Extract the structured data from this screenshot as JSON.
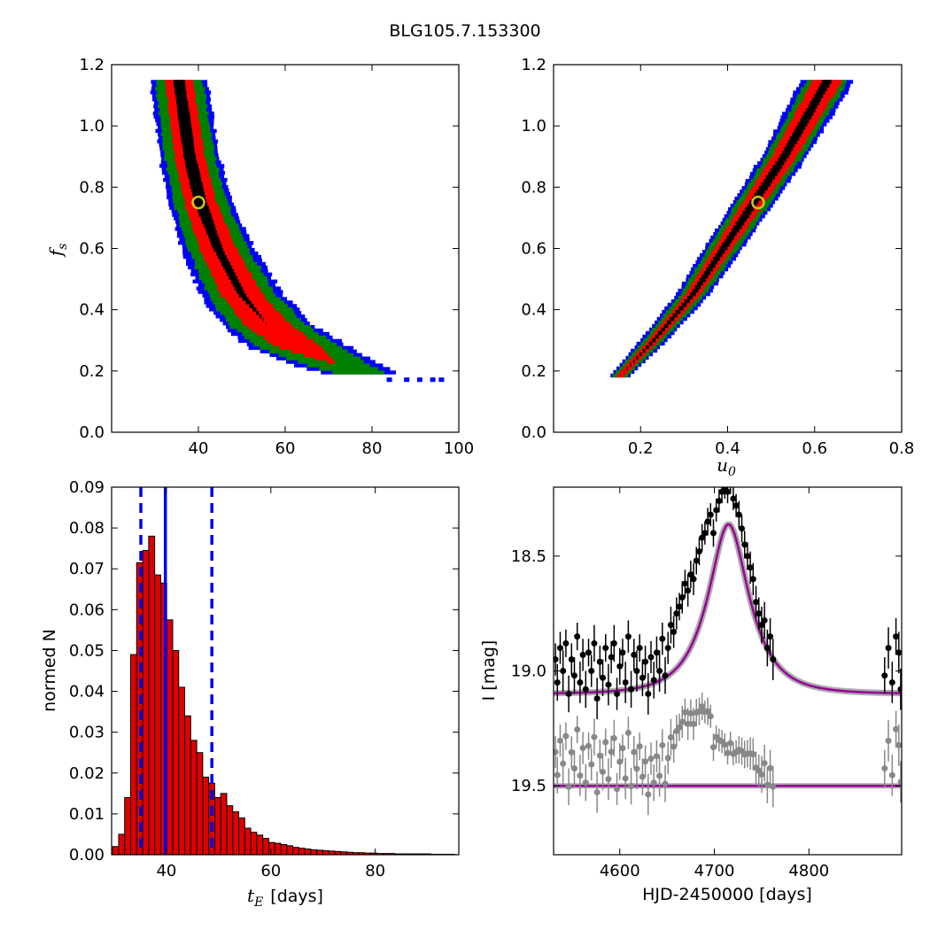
{
  "figure": {
    "title": "BLG105.7.153300"
  },
  "chart_data": [
    {
      "id": "panel-tE-fs",
      "type": "heatmap",
      "xlim": [
        20,
        100
      ],
      "ylim": [
        0.0,
        1.2
      ],
      "xticks": [
        40,
        60,
        80,
        100
      ],
      "yticks": [
        0.0,
        0.2,
        0.4,
        0.6,
        0.8,
        1.0,
        1.2
      ],
      "tick_labels_x": [
        "40",
        "60",
        "80",
        "100"
      ],
      "tick_labels_y": [
        "0.0",
        "0.2",
        "0.4",
        "0.6",
        "0.8",
        "1.0",
        "1.2"
      ],
      "xlabel": "",
      "ylabel": "f_s",
      "ylabel_main": "f",
      "ylabel_sub": "s",
      "confidence_colors": [
        "#0000ff",
        "#008000",
        "#ff0000",
        "#000000"
      ],
      "band": [
        {
          "y": 1.15,
          "center": 35.5,
          "w": [
            1.2,
            3.0,
            5.2,
            6.2
          ]
        },
        {
          "y": 1.0,
          "center": 37.0,
          "w": [
            1.3,
            3.2,
            5.4,
            6.4
          ]
        },
        {
          "y": 0.9,
          "center": 38.0,
          "w": [
            1.3,
            3.3,
            5.5,
            6.6
          ]
        },
        {
          "y": 0.75,
          "center": 40.5,
          "w": [
            1.4,
            3.5,
            5.8,
            7.0
          ]
        },
        {
          "y": 0.6,
          "center": 44.5,
          "w": [
            1.0,
            4.0,
            6.5,
            8.0
          ]
        },
        {
          "y": 0.45,
          "center": 50.0,
          "w": [
            0.8,
            4.5,
            7.5,
            9.0
          ]
        },
        {
          "y": 0.35,
          "center": 56.0,
          "w": [
            0.0,
            5.0,
            8.5,
            10.0
          ]
        },
        {
          "y": 0.28,
          "center": 63.0,
          "w": [
            0.0,
            5.0,
            9.0,
            11.0
          ]
        },
        {
          "y": 0.22,
          "center": 72.0,
          "w": [
            0.0,
            0.0,
            7.0,
            10.0
          ]
        },
        {
          "y": 0.19,
          "center": 78.0,
          "w": [
            0.0,
            0.0,
            5.0,
            8.0
          ]
        }
      ],
      "scatter_outliers": [
        {
          "x": 84,
          "y": 0.17
        },
        {
          "x": 88,
          "y": 0.17
        },
        {
          "x": 91,
          "y": 0.17
        },
        {
          "x": 94,
          "y": 0.17
        },
        {
          "x": 96,
          "y": 0.17
        }
      ],
      "best_fit": {
        "x": 40.0,
        "y": 0.75,
        "color": "#c8c81e"
      }
    },
    {
      "id": "panel-u0-fs",
      "type": "heatmap",
      "xlim": [
        0.0,
        0.8
      ],
      "ylim": [
        0.0,
        1.2
      ],
      "xticks": [
        0.2,
        0.4,
        0.6,
        0.8
      ],
      "yticks": [
        0.0,
        0.2,
        0.4,
        0.6,
        0.8,
        1.0,
        1.2
      ],
      "tick_labels_x": [
        "0.2",
        "0.4",
        "0.6",
        "0.8"
      ],
      "tick_labels_y": [
        "0.0",
        "0.2",
        "0.4",
        "0.6",
        "0.8",
        "1.0",
        "1.2"
      ],
      "xlabel": "u_0",
      "xlabel_main": "u",
      "xlabel_sub": "0",
      "ylabel": "",
      "confidence_colors": [
        "#0000ff",
        "#008000",
        "#ff0000",
        "#000000"
      ],
      "band": [
        {
          "y": 0.18,
          "center": 0.15,
          "w": [
            0.0,
            0.008,
            0.016,
            0.022
          ]
        },
        {
          "y": 0.3,
          "center": 0.23,
          "w": [
            0.004,
            0.012,
            0.022,
            0.03
          ]
        },
        {
          "y": 0.45,
          "center": 0.32,
          "w": [
            0.006,
            0.016,
            0.028,
            0.036
          ]
        },
        {
          "y": 0.6,
          "center": 0.39,
          "w": [
            0.008,
            0.02,
            0.033,
            0.042
          ]
        },
        {
          "y": 0.75,
          "center": 0.46,
          "w": [
            0.01,
            0.024,
            0.037,
            0.046
          ]
        },
        {
          "y": 0.9,
          "center": 0.53,
          "w": [
            0.01,
            0.027,
            0.04,
            0.05
          ]
        },
        {
          "y": 1.05,
          "center": 0.59,
          "w": [
            0.01,
            0.03,
            0.044,
            0.055
          ]
        },
        {
          "y": 1.15,
          "center": 0.63,
          "w": [
            0.01,
            0.032,
            0.046,
            0.058
          ]
        }
      ],
      "best_fit": {
        "x": 0.47,
        "y": 0.75,
        "color": "#c8c81e"
      }
    },
    {
      "id": "panel-tE-hist",
      "type": "bar",
      "xlim": [
        29.5,
        96
      ],
      "ylim": [
        0.0,
        0.09
      ],
      "xticks": [
        40,
        60,
        80
      ],
      "yticks": [
        0.0,
        0.01,
        0.02,
        0.03,
        0.04,
        0.05,
        0.06,
        0.07,
        0.08,
        0.09
      ],
      "tick_labels_x": [
        "40",
        "60",
        "80"
      ],
      "tick_labels_y": [
        "0.00",
        "0.01",
        "0.02",
        "0.03",
        "0.04",
        "0.05",
        "0.06",
        "0.07",
        "0.08",
        "0.09"
      ],
      "xlabel_main": "t",
      "xlabel_sub": "E",
      "xlabel_rest": "[days]",
      "ylabel": "normed N",
      "bin_start": 29.7,
      "bin_width": 1.15,
      "values": [
        0.002,
        0.005,
        0.014,
        0.049,
        0.0715,
        0.0745,
        0.078,
        0.0685,
        0.0665,
        0.0575,
        0.05,
        0.041,
        0.034,
        0.028,
        0.025,
        0.019,
        0.0175,
        0.014,
        0.015,
        0.012,
        0.0105,
        0.009,
        0.0065,
        0.0055,
        0.0048,
        0.004,
        0.003,
        0.0028,
        0.0025,
        0.0022,
        0.0018,
        0.0016,
        0.0014,
        0.0012,
        0.0011,
        0.001,
        0.0009,
        0.0008,
        0.0007,
        0.0006,
        0.0005,
        0.0005,
        0.0004,
        0.0004,
        0.0003,
        0.0003,
        0.0003,
        0.0002,
        0.0002,
        0.0002,
        0.0002,
        0.0002,
        0.0002,
        0.0001,
        0.0001,
        0.0001,
        0.0001
      ],
      "bar_color": "#dd0000",
      "median": 39.8,
      "lower": 35.1,
      "upper": 48.7,
      "line_color": "#0000ee"
    },
    {
      "id": "panel-lightcurve",
      "type": "scatter",
      "xlim": [
        4530,
        4898
      ],
      "ylim": [
        19.8,
        18.2
      ],
      "xticks": [
        4600,
        4700,
        4800
      ],
      "yticks": [
        18.5,
        19.0,
        19.5
      ],
      "tick_labels_x": [
        "4600",
        "4700",
        "4800"
      ],
      "tick_labels_y": [
        "18.5",
        "19.0",
        "19.5"
      ],
      "xlabel": "HJD-2450000 [days]",
      "ylabel": "I [mag]",
      "model": {
        "t0": 4715,
        "tE": 40,
        "u0": 0.47,
        "fs": 0.75,
        "I0": 19.1,
        "offset_residual": 19.5
      },
      "data_color": "#000000",
      "residual_color": "#888888",
      "model_color": "#990099",
      "model_band_color": "#888888",
      "points": [
        [
          4532,
          18.95,
          0.07
        ],
        [
          4534,
          19.05,
          0.08
        ],
        [
          4537,
          18.9,
          0.07
        ],
        [
          4540,
          19.0,
          0.09
        ],
        [
          4543,
          18.88,
          0.06
        ],
        [
          4546,
          19.1,
          0.08
        ],
        [
          4549,
          18.95,
          0.07
        ],
        [
          4552,
          19.02,
          0.08
        ],
        [
          4555,
          18.85,
          0.06
        ],
        [
          4558,
          19.05,
          0.09
        ],
        [
          4561,
          18.93,
          0.07
        ],
        [
          4564,
          19.08,
          0.08
        ],
        [
          4567,
          18.92,
          0.06
        ],
        [
          4570,
          19.0,
          0.07
        ],
        [
          4573,
          18.88,
          0.08
        ],
        [
          4576,
          19.12,
          0.09
        ],
        [
          4579,
          18.96,
          0.07
        ],
        [
          4582,
          19.03,
          0.08
        ],
        [
          4585,
          18.9,
          0.06
        ],
        [
          4588,
          19.06,
          0.09
        ],
        [
          4591,
          18.94,
          0.07
        ],
        [
          4594,
          18.88,
          0.08
        ],
        [
          4597,
          19.1,
          0.07
        ],
        [
          4600,
          18.98,
          0.08
        ],
        [
          4603,
          18.92,
          0.06
        ],
        [
          4606,
          19.05,
          0.09
        ],
        [
          4609,
          18.85,
          0.07
        ],
        [
          4612,
          19.08,
          0.08
        ],
        [
          4615,
          18.93,
          0.07
        ],
        [
          4618,
          19.0,
          0.09
        ],
        [
          4621,
          18.9,
          0.06
        ],
        [
          4624,
          19.03,
          0.08
        ],
        [
          4627,
          18.96,
          0.07
        ],
        [
          4630,
          19.1,
          0.09
        ],
        [
          4633,
          18.94,
          0.07
        ],
        [
          4636,
          19.04,
          0.08
        ],
        [
          4639,
          18.92,
          0.07
        ],
        [
          4642,
          19.0,
          0.09
        ],
        [
          4645,
          18.86,
          0.07
        ],
        [
          4648,
          19.02,
          0.08
        ],
        [
          4651,
          18.9,
          0.07
        ],
        [
          4654,
          18.8,
          0.08
        ],
        [
          4657,
          18.83,
          0.07
        ],
        [
          4660,
          18.75,
          0.07
        ],
        [
          4663,
          18.72,
          0.06
        ],
        [
          4666,
          18.68,
          0.07
        ],
        [
          4669,
          18.62,
          0.06
        ],
        [
          4672,
          18.65,
          0.07
        ],
        [
          4675,
          18.58,
          0.06
        ],
        [
          4678,
          18.6,
          0.07
        ],
        [
          4681,
          18.52,
          0.06
        ],
        [
          4684,
          18.48,
          0.06
        ],
        [
          4687,
          18.42,
          0.06
        ],
        [
          4690,
          18.4,
          0.05
        ],
        [
          4693,
          18.35,
          0.06
        ],
        [
          4696,
          18.32,
          0.05
        ],
        [
          4699,
          18.4,
          0.06
        ],
        [
          4702,
          18.3,
          0.05
        ],
        [
          4705,
          18.26,
          0.05
        ],
        [
          4708,
          18.22,
          0.05
        ],
        [
          4711,
          18.2,
          0.05
        ],
        [
          4714,
          18.22,
          0.05
        ],
        [
          4717,
          18.18,
          0.05
        ],
        [
          4720,
          18.25,
          0.05
        ],
        [
          4723,
          18.28,
          0.05
        ],
        [
          4726,
          18.32,
          0.06
        ],
        [
          4729,
          18.38,
          0.06
        ],
        [
          4732,
          18.45,
          0.06
        ],
        [
          4735,
          18.5,
          0.06
        ],
        [
          4738,
          18.55,
          0.07
        ],
        [
          4741,
          18.6,
          0.07
        ],
        [
          4744,
          18.7,
          0.07
        ],
        [
          4747,
          18.75,
          0.07
        ],
        [
          4750,
          18.8,
          0.08
        ],
        [
          4753,
          18.78,
          0.08
        ],
        [
          4756,
          18.9,
          0.08
        ],
        [
          4759,
          18.85,
          0.08
        ],
        [
          4762,
          18.95,
          0.09
        ],
        [
          4880,
          19.02,
          0.08
        ],
        [
          4884,
          18.9,
          0.09
        ],
        [
          4888,
          19.05,
          0.09
        ],
        [
          4892,
          18.85,
          0.08
        ],
        [
          4895,
          18.92,
          0.09
        ],
        [
          4897,
          19.08,
          0.09
        ]
      ]
    }
  ]
}
